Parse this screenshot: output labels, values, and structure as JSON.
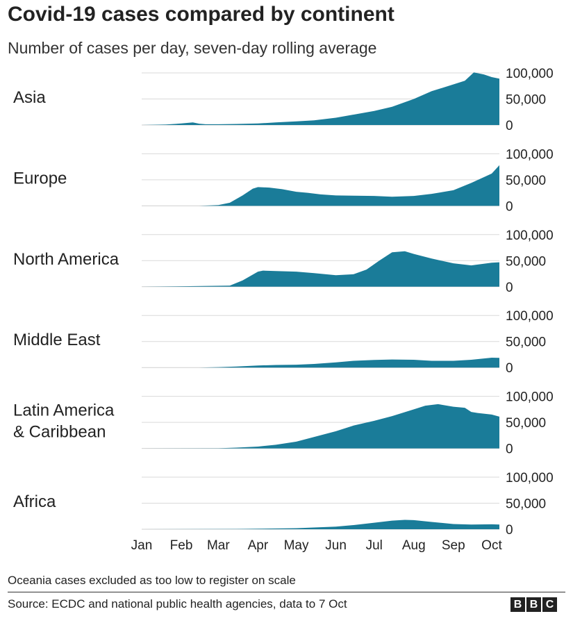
{
  "title": "Covid-19 cases compared by continent",
  "subtitle": "Number of cases per day, seven-day rolling average",
  "footnote": "Oceania cases excluded as too low to register on scale",
  "source": "Source: ECDC and national public health agencies, data to 7 Oct",
  "logo": [
    "B",
    "B",
    "C"
  ],
  "colors": {
    "area": "#1a7c99",
    "grid": "#d9d9d9",
    "text": "#222222"
  },
  "chart_data": {
    "type": "area",
    "x_axis": {
      "start": "2020-01-01",
      "end": "2020-10-07",
      "tick_labels": [
        "Jan",
        "Feb",
        "Mar",
        "Apr",
        "May",
        "Jun",
        "Jul",
        "Aug",
        "Sep",
        "Oct"
      ],
      "tick_dates": [
        "2020-01-01",
        "2020-02-01",
        "2020-03-01",
        "2020-04-01",
        "2020-05-01",
        "2020-06-01",
        "2020-07-01",
        "2020-08-01",
        "2020-09-01",
        "2020-10-01"
      ]
    },
    "y_axis": {
      "ylim": [
        0,
        100000
      ],
      "ticks": [
        0,
        50000,
        100000
      ],
      "tick_labels": [
        "0",
        "50,000",
        "100,000"
      ]
    },
    "grid": true,
    "series": [
      {
        "name": "Asia",
        "label_lines": [
          "Asia"
        ],
        "x": [
          "2020-01-01",
          "2020-01-20",
          "2020-02-01",
          "2020-02-10",
          "2020-02-15",
          "2020-02-20",
          "2020-03-01",
          "2020-03-15",
          "2020-04-01",
          "2020-04-15",
          "2020-05-01",
          "2020-05-15",
          "2020-06-01",
          "2020-06-15",
          "2020-07-01",
          "2020-07-15",
          "2020-08-01",
          "2020-08-15",
          "2020-09-01",
          "2020-09-10",
          "2020-09-17",
          "2020-09-25",
          "2020-10-01",
          "2020-10-07"
        ],
        "values": [
          0,
          1000,
          3000,
          5000,
          2500,
          1500,
          1500,
          2000,
          3000,
          5000,
          7000,
          9000,
          14000,
          20000,
          27000,
          35000,
          50000,
          65000,
          78000,
          85000,
          101000,
          97000,
          92000,
          89000
        ]
      },
      {
        "name": "Europe",
        "label_lines": [
          "Europe"
        ],
        "x": [
          "2020-01-01",
          "2020-02-15",
          "2020-03-01",
          "2020-03-10",
          "2020-03-20",
          "2020-03-28",
          "2020-04-01",
          "2020-04-10",
          "2020-04-20",
          "2020-05-01",
          "2020-05-10",
          "2020-05-20",
          "2020-06-01",
          "2020-06-15",
          "2020-07-01",
          "2020-07-15",
          "2020-08-01",
          "2020-08-15",
          "2020-09-01",
          "2020-09-15",
          "2020-10-01",
          "2020-10-07"
        ],
        "values": [
          0,
          0,
          1500,
          6000,
          20000,
          33000,
          36000,
          35000,
          32000,
          27000,
          25000,
          22000,
          20000,
          19500,
          19000,
          17500,
          19000,
          23000,
          30000,
          44000,
          62000,
          78000
        ]
      },
      {
        "name": "North America",
        "label_lines": [
          "North America"
        ],
        "x": [
          "2020-01-01",
          "2020-03-10",
          "2020-03-20",
          "2020-04-01",
          "2020-04-05",
          "2020-04-15",
          "2020-05-01",
          "2020-05-15",
          "2020-06-01",
          "2020-06-15",
          "2020-06-25",
          "2020-07-05",
          "2020-07-15",
          "2020-07-25",
          "2020-08-01",
          "2020-08-15",
          "2020-09-01",
          "2020-09-15",
          "2020-10-01",
          "2020-10-07"
        ],
        "values": [
          0,
          2000,
          12000,
          29000,
          31000,
          30000,
          29000,
          26000,
          22000,
          24000,
          33000,
          50000,
          66000,
          68000,
          63000,
          54000,
          45000,
          41000,
          46000,
          47000
        ]
      },
      {
        "name": "Middle East",
        "label_lines": [
          "Middle East"
        ],
        "x": [
          "2020-01-01",
          "2020-02-15",
          "2020-03-01",
          "2020-03-15",
          "2020-04-01",
          "2020-04-15",
          "2020-05-01",
          "2020-05-15",
          "2020-06-01",
          "2020-06-15",
          "2020-07-01",
          "2020-07-15",
          "2020-08-01",
          "2020-08-15",
          "2020-09-01",
          "2020-09-15",
          "2020-10-01",
          "2020-10-07"
        ],
        "values": [
          0,
          0,
          800,
          2000,
          4000,
          5000,
          5500,
          7000,
          10000,
          13000,
          14500,
          15500,
          15000,
          13000,
          13000,
          15000,
          19000,
          18500
        ]
      },
      {
        "name": "Latin America & Caribbean",
        "label_lines": [
          "Latin America",
          "& Caribbean"
        ],
        "x": [
          "2020-01-01",
          "2020-03-01",
          "2020-03-15",
          "2020-04-01",
          "2020-04-15",
          "2020-05-01",
          "2020-05-15",
          "2020-06-01",
          "2020-06-15",
          "2020-07-01",
          "2020-07-15",
          "2020-08-01",
          "2020-08-10",
          "2020-08-20",
          "2020-09-01",
          "2020-09-10",
          "2020-09-15",
          "2020-09-20",
          "2020-10-01",
          "2020-10-07"
        ],
        "values": [
          0,
          300,
          1500,
          3500,
          7000,
          13000,
          22000,
          33000,
          44000,
          53000,
          62000,
          75000,
          82000,
          85000,
          80000,
          78000,
          70000,
          68000,
          65000,
          61000
        ]
      },
      {
        "name": "Africa",
        "label_lines": [
          "Africa"
        ],
        "x": [
          "2020-01-01",
          "2020-03-15",
          "2020-04-01",
          "2020-05-01",
          "2020-06-01",
          "2020-06-15",
          "2020-07-01",
          "2020-07-15",
          "2020-07-25",
          "2020-08-01",
          "2020-08-15",
          "2020-09-01",
          "2020-09-15",
          "2020-10-01",
          "2020-10-07"
        ],
        "values": [
          0,
          500,
          1000,
          2000,
          5000,
          8000,
          12500,
          16500,
          18000,
          17500,
          14000,
          10000,
          9000,
          9500,
          9000
        ]
      }
    ]
  }
}
